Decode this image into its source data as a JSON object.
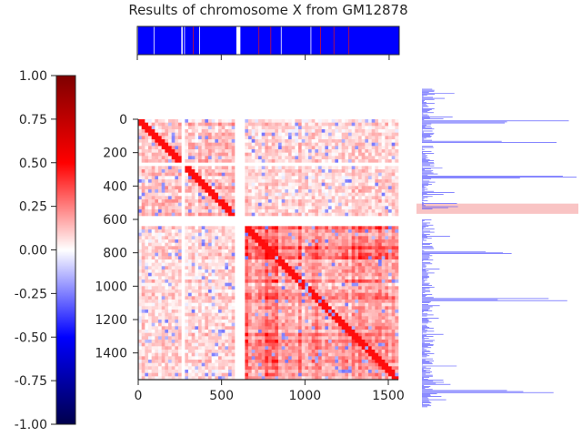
{
  "chart_data": {
    "type": "heatmap",
    "title": "Results of chromosome X from GM12878",
    "matrix_size": 1560,
    "x_ticks": [
      0,
      500,
      1000,
      1500
    ],
    "y_ticks": [
      0,
      200,
      400,
      600,
      800,
      1000,
      1200,
      1400
    ],
    "colorbar": {
      "min": -1.0,
      "max": 1.0,
      "ticks": [
        "1.00",
        "0.75",
        "0.50",
        "0.25",
        "0.00",
        "-0.25",
        "-0.50",
        "-0.75",
        "-1.00"
      ],
      "colormap": "seismic"
    },
    "gaps": [
      [
        262,
        278
      ],
      [
        590,
        638
      ]
    ],
    "blocks": [
      {
        "range": [
          0,
          590
        ],
        "level": 0.3
      },
      {
        "range": [
          638,
          880
        ],
        "level": 0.85
      },
      {
        "range": [
          880,
          1560
        ],
        "level": 0.55
      }
    ],
    "compartment_track": {
      "dominant": "blue",
      "accent": "red"
    },
    "side_track": {
      "highlight_y_range": [
        560,
        610
      ],
      "highlight_color": "#f9c4c4",
      "peaks_at": [
        160,
        260,
        430,
        800,
        1030,
        1480
      ]
    },
    "colors": {
      "positive": "#ff0000",
      "negative": "#0000ff",
      "neutral": "#ffffff",
      "track": "#0000ff"
    }
  }
}
